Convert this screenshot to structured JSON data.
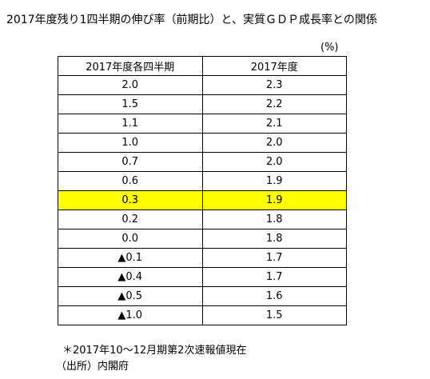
{
  "title": "2017年度残り1四半期の伸び率（前期比）と、実質ＧＤＰ成長率との関係",
  "unit": "(%)",
  "table": {
    "headers": [
      "2017年度各四半期",
      "2017年度"
    ],
    "rows": [
      {
        "quarter": "2.0",
        "fy": "2.3"
      },
      {
        "quarter": "1.5",
        "fy": "2.2"
      },
      {
        "quarter": "1.1",
        "fy": "2.1"
      },
      {
        "quarter": "1.0",
        "fy": "2.0"
      },
      {
        "quarter": "0.7",
        "fy": "2.0"
      },
      {
        "quarter": "0.6",
        "fy": "1.9"
      },
      {
        "quarter": "0.3",
        "fy": "1.9"
      },
      {
        "quarter": "0.2",
        "fy": "1.8"
      },
      {
        "quarter": "0.0",
        "fy": "1.8"
      },
      {
        "quarter": "▲0.1",
        "fy": "1.7"
      },
      {
        "quarter": "▲0.4",
        "fy": "1.7"
      },
      {
        "quarter": "▲0.5",
        "fy": "1.6"
      },
      {
        "quarter": "▲1.0",
        "fy": "1.5"
      }
    ],
    "highlight_row": 6,
    "highlight_color": "#ffff00"
  },
  "note": "＊2017年10～12月期第2次速報値現在",
  "source": "（出所）内閣府"
}
